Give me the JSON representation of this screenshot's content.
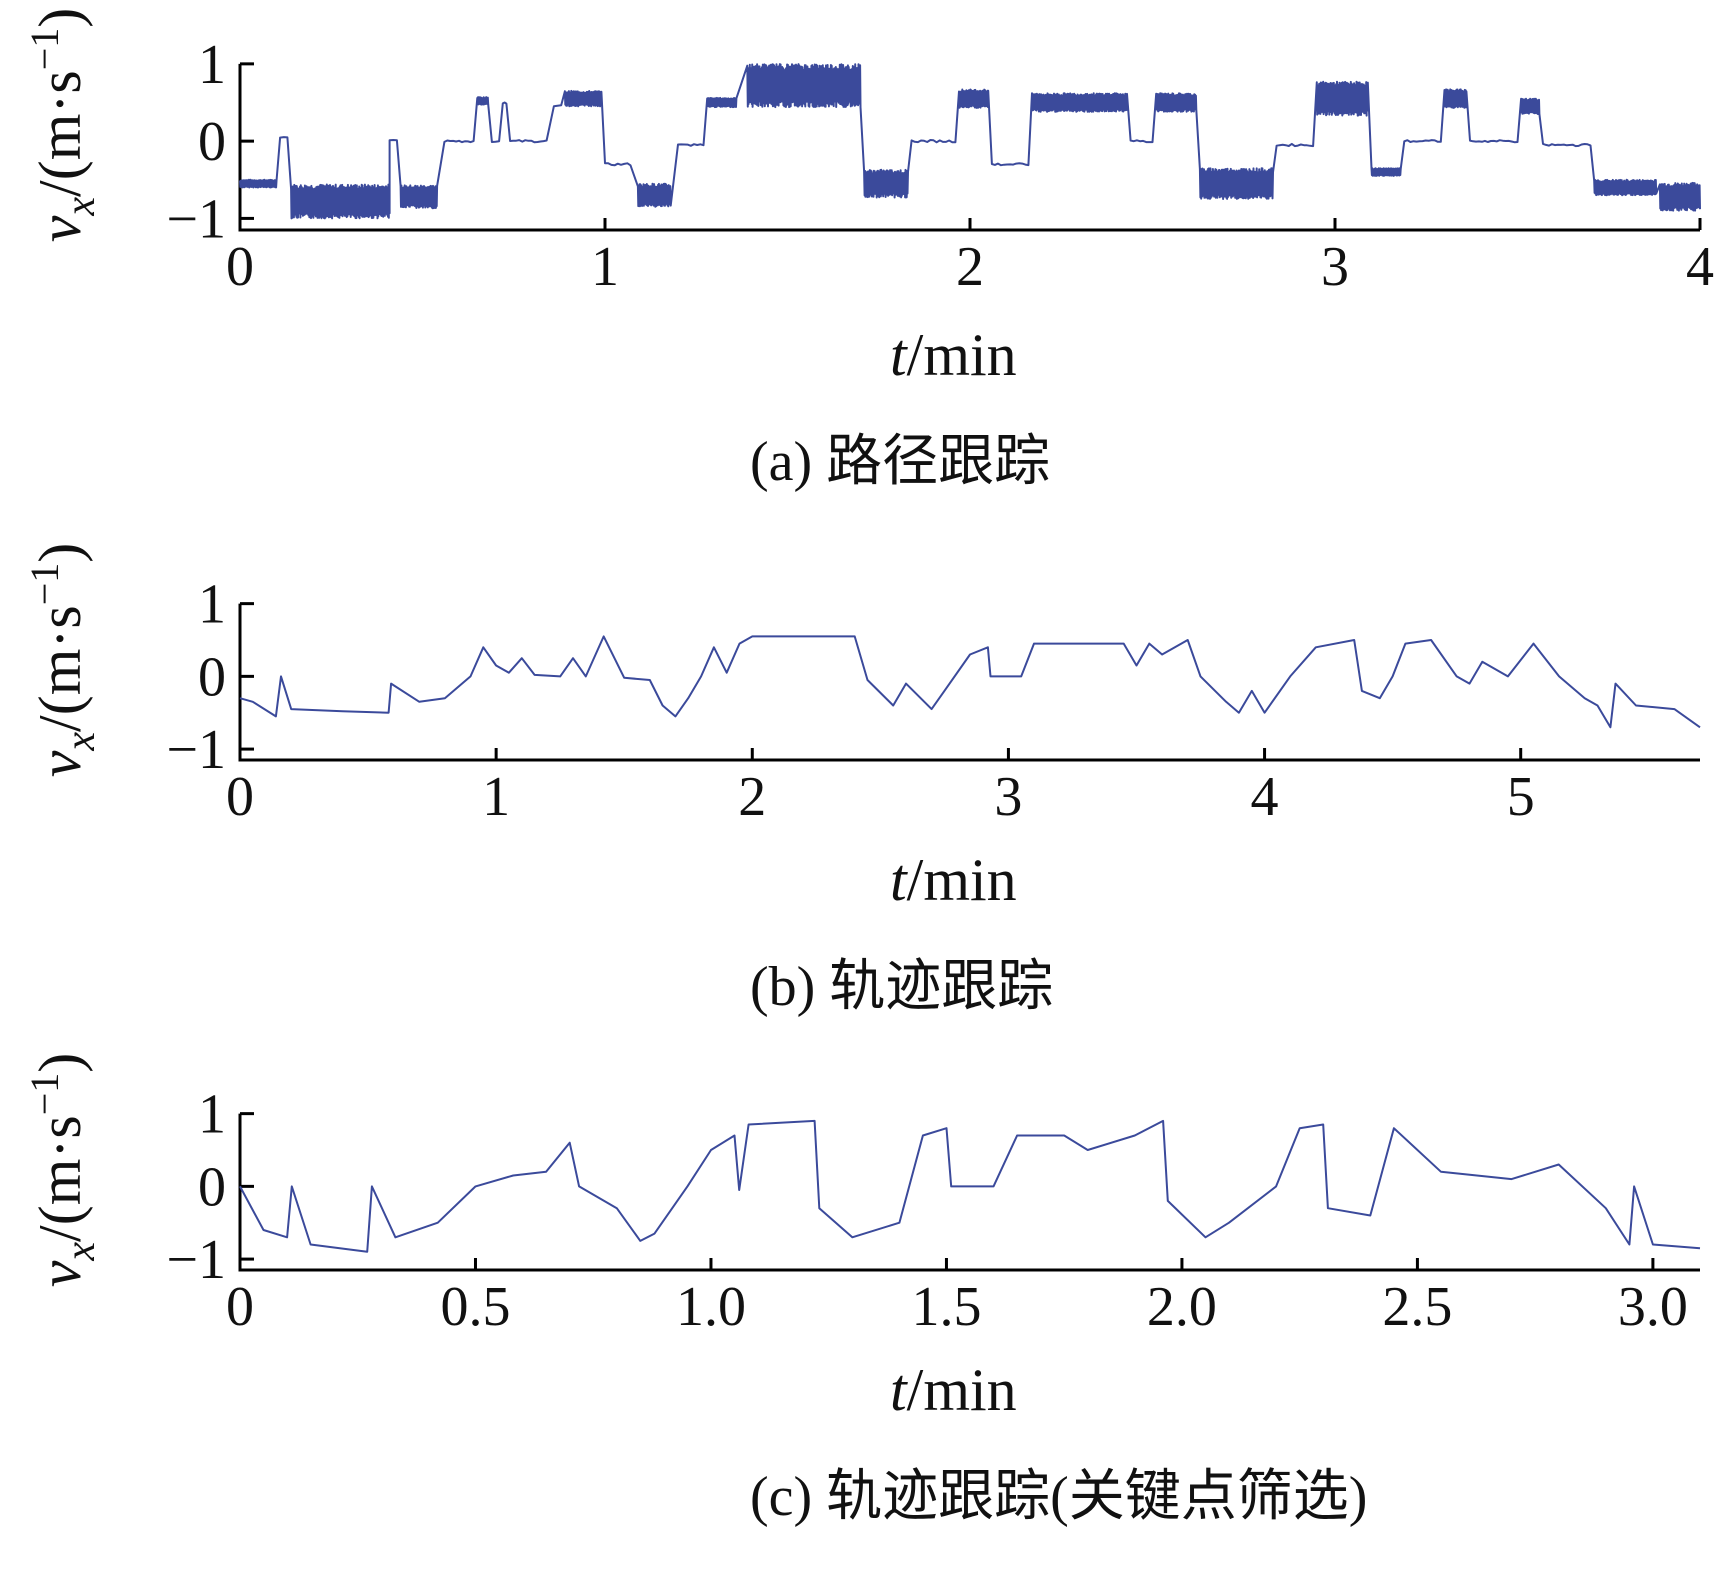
{
  "style": {
    "line_color": "#3b4a9b",
    "axis_color": "#000000"
  },
  "chart_data": [
    {
      "type": "line",
      "caption": "(a) 路径跟踪",
      "xlabel": "t/min",
      "ylabel": "v_x/(m·s^-1)",
      "xlim": [
        0,
        4
      ],
      "ylim": [
        -1.15,
        1.05
      ],
      "x_ticks": [
        "0",
        "1",
        "2",
        "3",
        "4"
      ],
      "y_ticks": [
        "1",
        "0",
        "−1"
      ],
      "segments": [
        {
          "x0": 0.0,
          "x1": 0.1,
          "y": -0.55,
          "osc": 0.05
        },
        {
          "x0": 0.11,
          "x1": 0.13,
          "y": 0.05,
          "osc": 0.0
        },
        {
          "x0": 0.14,
          "x1": 0.41,
          "y": -0.78,
          "osc": 0.22
        },
        {
          "x0": 0.41,
          "x1": 0.43,
          "y": 0.0,
          "osc": 0.0
        },
        {
          "x0": 0.44,
          "x1": 0.54,
          "y": -0.72,
          "osc": 0.15
        },
        {
          "x0": 0.56,
          "x1": 0.64,
          "y": 0.0,
          "osc": 0.02
        },
        {
          "x0": 0.65,
          "x1": 0.68,
          "y": 0.52,
          "osc": 0.05
        },
        {
          "x0": 0.69,
          "x1": 0.71,
          "y": 0.0,
          "osc": 0.0
        },
        {
          "x0": 0.72,
          "x1": 0.73,
          "y": 0.5,
          "osc": 0.03
        },
        {
          "x0": 0.74,
          "x1": 0.84,
          "y": 0.0,
          "osc": 0.01
        },
        {
          "x0": 0.86,
          "x1": 0.88,
          "y": 0.45,
          "osc": 0.03
        },
        {
          "x0": 0.89,
          "x1": 0.99,
          "y": 0.55,
          "osc": 0.1
        },
        {
          "x0": 1.0,
          "x1": 1.07,
          "y": -0.3,
          "osc": 0.03
        },
        {
          "x0": 1.09,
          "x1": 1.18,
          "y": -0.7,
          "osc": 0.15
        },
        {
          "x0": 1.2,
          "x1": 1.27,
          "y": -0.05,
          "osc": 0.02
        },
        {
          "x0": 1.28,
          "x1": 1.36,
          "y": 0.5,
          "osc": 0.06
        },
        {
          "x0": 1.39,
          "x1": 1.7,
          "y": 0.72,
          "osc": 0.28
        },
        {
          "x0": 1.71,
          "x1": 1.83,
          "y": -0.55,
          "osc": 0.18
        },
        {
          "x0": 1.84,
          "x1": 1.96,
          "y": 0.0,
          "osc": 0.02
        },
        {
          "x0": 1.97,
          "x1": 2.05,
          "y": 0.55,
          "osc": 0.12
        },
        {
          "x0": 2.06,
          "x1": 2.16,
          "y": -0.3,
          "osc": 0.03
        },
        {
          "x0": 2.17,
          "x1": 2.43,
          "y": 0.5,
          "osc": 0.12
        },
        {
          "x0": 2.44,
          "x1": 2.5,
          "y": 0.0,
          "osc": 0.02
        },
        {
          "x0": 2.51,
          "x1": 2.62,
          "y": 0.5,
          "osc": 0.12
        },
        {
          "x0": 2.63,
          "x1": 2.83,
          "y": -0.55,
          "osc": 0.2
        },
        {
          "x0": 2.84,
          "x1": 2.94,
          "y": -0.05,
          "osc": 0.02
        },
        {
          "x0": 2.95,
          "x1": 3.09,
          "y": 0.55,
          "osc": 0.22
        },
        {
          "x0": 3.1,
          "x1": 3.18,
          "y": -0.4,
          "osc": 0.05
        },
        {
          "x0": 3.19,
          "x1": 3.29,
          "y": 0.0,
          "osc": 0.02
        },
        {
          "x0": 3.3,
          "x1": 3.36,
          "y": 0.55,
          "osc": 0.12
        },
        {
          "x0": 3.37,
          "x1": 3.5,
          "y": 0.0,
          "osc": 0.03
        },
        {
          "x0": 3.51,
          "x1": 3.56,
          "y": 0.45,
          "osc": 0.1
        },
        {
          "x0": 3.57,
          "x1": 3.7,
          "y": -0.05,
          "osc": 0.03
        },
        {
          "x0": 3.71,
          "x1": 3.88,
          "y": -0.6,
          "osc": 0.1
        },
        {
          "x0": 3.89,
          "x1": 4.0,
          "y": -0.72,
          "osc": 0.18
        }
      ]
    },
    {
      "type": "line",
      "caption": "(b) 轨迹跟踪",
      "xlabel": "t/min",
      "ylabel": "v_x/(m·s^-1)",
      "xlim": [
        0,
        5.7
      ],
      "ylim": [
        -1.15,
        1.05
      ],
      "x_ticks": [
        "0",
        "1",
        "2",
        "3",
        "4",
        "5"
      ],
      "y_ticks": [
        "1",
        "0",
        "−1"
      ],
      "points": [
        [
          0.0,
          -0.3
        ],
        [
          0.05,
          -0.35
        ],
        [
          0.14,
          -0.55
        ],
        [
          0.16,
          0.0
        ],
        [
          0.2,
          -0.45
        ],
        [
          0.4,
          -0.48
        ],
        [
          0.58,
          -0.5
        ],
        [
          0.59,
          -0.1
        ],
        [
          0.7,
          -0.35
        ],
        [
          0.8,
          -0.3
        ],
        [
          0.9,
          0.0
        ],
        [
          0.95,
          0.4
        ],
        [
          1.0,
          0.15
        ],
        [
          1.05,
          0.05
        ],
        [
          1.1,
          0.25
        ],
        [
          1.15,
          0.02
        ],
        [
          1.25,
          0.0
        ],
        [
          1.3,
          0.25
        ],
        [
          1.35,
          0.0
        ],
        [
          1.42,
          0.55
        ],
        [
          1.5,
          -0.02
        ],
        [
          1.6,
          -0.05
        ],
        [
          1.65,
          -0.4
        ],
        [
          1.7,
          -0.55
        ],
        [
          1.75,
          -0.3
        ],
        [
          1.8,
          0.0
        ],
        [
          1.85,
          0.4
        ],
        [
          1.9,
          0.05
        ],
        [
          1.95,
          0.45
        ],
        [
          2.0,
          0.55
        ],
        [
          2.4,
          0.55
        ],
        [
          2.45,
          -0.05
        ],
        [
          2.55,
          -0.4
        ],
        [
          2.6,
          -0.1
        ],
        [
          2.7,
          -0.45
        ],
        [
          2.75,
          -0.2
        ],
        [
          2.85,
          0.3
        ],
        [
          2.92,
          0.4
        ],
        [
          2.93,
          0.0
        ],
        [
          3.05,
          0.0
        ],
        [
          3.1,
          0.45
        ],
        [
          3.3,
          0.45
        ],
        [
          3.45,
          0.45
        ],
        [
          3.5,
          0.15
        ],
        [
          3.55,
          0.45
        ],
        [
          3.6,
          0.3
        ],
        [
          3.7,
          0.5
        ],
        [
          3.75,
          0.0
        ],
        [
          3.85,
          -0.35
        ],
        [
          3.9,
          -0.5
        ],
        [
          3.95,
          -0.2
        ],
        [
          4.0,
          -0.5
        ],
        [
          4.1,
          0.0
        ],
        [
          4.2,
          0.4
        ],
        [
          4.35,
          0.5
        ],
        [
          4.38,
          -0.2
        ],
        [
          4.45,
          -0.3
        ],
        [
          4.5,
          0.0
        ],
        [
          4.55,
          0.45
        ],
        [
          4.65,
          0.5
        ],
        [
          4.75,
          0.0
        ],
        [
          4.8,
          -0.1
        ],
        [
          4.85,
          0.2
        ],
        [
          4.95,
          0.0
        ],
        [
          5.05,
          0.45
        ],
        [
          5.15,
          0.0
        ],
        [
          5.25,
          -0.3
        ],
        [
          5.3,
          -0.4
        ],
        [
          5.35,
          -0.7
        ],
        [
          5.37,
          -0.1
        ],
        [
          5.45,
          -0.4
        ],
        [
          5.6,
          -0.45
        ],
        [
          5.7,
          -0.7
        ]
      ]
    },
    {
      "type": "line",
      "caption": "(c) 轨迹跟踪(关键点筛选)",
      "xlabel": "t/min",
      "ylabel": "v_x/(m·s^-1)",
      "xlim": [
        0,
        3.1
      ],
      "ylim": [
        -1.15,
        1.05
      ],
      "x_ticks": [
        "0",
        "0.5",
        "1.0",
        "1.5",
        "2.0",
        "2.5",
        "3.0"
      ],
      "y_ticks": [
        "1",
        "0",
        "−1"
      ],
      "points": [
        [
          0.0,
          0.0
        ],
        [
          0.05,
          -0.6
        ],
        [
          0.1,
          -0.7
        ],
        [
          0.11,
          0.0
        ],
        [
          0.15,
          -0.8
        ],
        [
          0.27,
          -0.9
        ],
        [
          0.28,
          0.0
        ],
        [
          0.33,
          -0.7
        ],
        [
          0.42,
          -0.5
        ],
        [
          0.5,
          0.0
        ],
        [
          0.58,
          0.15
        ],
        [
          0.65,
          0.2
        ],
        [
          0.7,
          0.6
        ],
        [
          0.72,
          0.0
        ],
        [
          0.8,
          -0.3
        ],
        [
          0.85,
          -0.75
        ],
        [
          0.88,
          -0.65
        ],
        [
          0.95,
          0.0
        ],
        [
          1.0,
          0.5
        ],
        [
          1.05,
          0.7
        ],
        [
          1.06,
          -0.05
        ],
        [
          1.08,
          0.85
        ],
        [
          1.22,
          0.9
        ],
        [
          1.23,
          -0.3
        ],
        [
          1.3,
          -0.7
        ],
        [
          1.4,
          -0.5
        ],
        [
          1.45,
          0.7
        ],
        [
          1.5,
          0.8
        ],
        [
          1.51,
          0.0
        ],
        [
          1.6,
          0.0
        ],
        [
          1.65,
          0.7
        ],
        [
          1.75,
          0.7
        ],
        [
          1.8,
          0.5
        ],
        [
          1.9,
          0.7
        ],
        [
          1.96,
          0.9
        ],
        [
          1.97,
          -0.2
        ],
        [
          2.05,
          -0.7
        ],
        [
          2.1,
          -0.5
        ],
        [
          2.2,
          0.0
        ],
        [
          2.25,
          0.8
        ],
        [
          2.3,
          0.85
        ],
        [
          2.31,
          -0.3
        ],
        [
          2.4,
          -0.4
        ],
        [
          2.45,
          0.8
        ],
        [
          2.55,
          0.2
        ],
        [
          2.7,
          0.1
        ],
        [
          2.8,
          0.3
        ],
        [
          2.9,
          -0.3
        ],
        [
          2.95,
          -0.8
        ],
        [
          2.96,
          0.0
        ],
        [
          3.0,
          -0.8
        ],
        [
          3.1,
          -0.85
        ]
      ]
    }
  ]
}
